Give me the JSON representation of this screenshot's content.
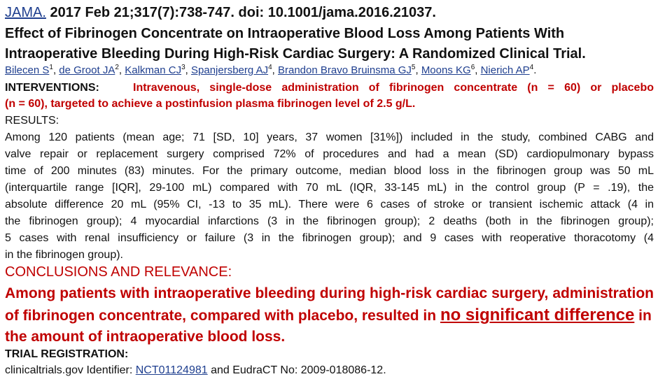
{
  "citation": {
    "journal": "JAMA.",
    "ref": "2017 Feb 21;317(7):738-747. doi: 10.1001/jama.2016.21037."
  },
  "title": {
    "line1": "Effect of Fibrinogen Concentrate on Intraoperative Blood Loss Among Patients With",
    "line2": "Intraoperative Bleeding During High-Risk Cardiac Surgery: A Randomized Clinical Trial."
  },
  "authors": [
    {
      "name": "Bilecen S",
      "sup": "1"
    },
    {
      "name": "de Groot JA",
      "sup": "2"
    },
    {
      "name": "Kalkman CJ",
      "sup": "3"
    },
    {
      "name": "Spanjersberg AJ",
      "sup": "4"
    },
    {
      "name": "Brandon Bravo Bruinsma GJ",
      "sup": "5"
    },
    {
      "name": "Moons KG",
      "sup": "6"
    },
    {
      "name": "Nierich AP",
      "sup": "4"
    }
  ],
  "interventions": {
    "label": "INTERVENTIONS:",
    "line1": "Intravenous, single-dose administration of fibrinogen concentrate (n = 60) or placebo",
    "line2": "(n = 60), targeted to achieve a postinfusion plasma fibrinogen level of 2.5 g/L."
  },
  "results": {
    "label": "RESULTS:",
    "lines": [
      "Among 120 patients (mean age; 71 [SD, 10] years, 37 women [31%]) included in the study, combined CABG and",
      "valve repair or replacement surgery comprised 72% of procedures and had a mean (SD) cardiopulmonary bypass",
      "time of 200 minutes (83) minutes. For the primary outcome, median blood loss in the fibrinogen group was 50 mL",
      "(interquartile range [IQR], 29-100 mL) compared with 70 mL (IQR, 33-145 mL) in the control group (P = .19), the",
      "absolute difference 20 mL (95% CI, -13 to 35 mL). There were 6 cases of stroke or transient ischemic attack (4 in",
      "the fibrinogen group); 4 myocardial infarctions (3 in the fibrinogen group); 2 deaths (both in the fibrinogen group);",
      "5 cases with renal insufficiency or failure (3 in the fibrinogen group); and 9 cases with reoperative thoracotomy (4"
    ],
    "last_line": "in the fibrinogen group)."
  },
  "conclusions": {
    "label": "CONCLUSIONS AND RELEVANCE:",
    "line1": "Among patients with intraoperative bleeding during high-risk cardiac surgery, administration",
    "line2_pre": "of fibrinogen concentrate, compared with placebo, resulted in",
    "line2_emph": "no significant difference",
    "line2_post": "in",
    "line3": "the amount of intraoperative blood loss."
  },
  "registration": {
    "label": "TRIAL REGISTRATION:",
    "pre": "clinicaltrials.gov Identifier:",
    "link": "NCT01124981",
    "post": "and EudraCT No: 2009-018086-12."
  },
  "colors": {
    "red": "#c00000",
    "link": "#1f3f8f",
    "text": "#111111"
  }
}
